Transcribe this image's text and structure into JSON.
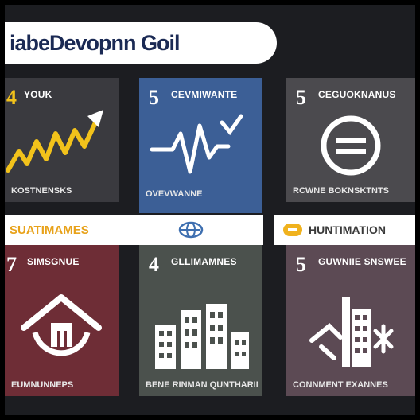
{
  "header": {
    "title": "iabeDevopnn Goil"
  },
  "tiles": [
    {
      "number": "4",
      "heading": "YOUK",
      "footer": "KOSTNENSKS",
      "color": "#3a3a3f",
      "icon": "growth-chart-icon"
    },
    {
      "number": "5",
      "heading": "CEVMIWANTE",
      "footer": "OVEVWANNE",
      "color": "#3c5f96",
      "icon": "heartbeat-icon"
    },
    {
      "number": "5",
      "heading": "CEGUOKNANUS",
      "footer": "RCWNE BOKNSKTNTS",
      "color": "#4b4a4e",
      "icon": "equals-circle-icon"
    },
    {
      "number": "7",
      "heading": "SIMSGNUE",
      "footer": "EUMNUNNEPS",
      "color": "#6e2d36",
      "icon": "house-icon"
    },
    {
      "number": "4",
      "heading": "GLLIMAMNES",
      "footer": "BENE RINMAN QUNTHARINES",
      "color": "#4b514d",
      "icon": "city-icon"
    },
    {
      "number": "5",
      "heading": "GUWNIIE SNSWEE",
      "footer": "CONNMENT EXANNES",
      "color": "#5c4a54",
      "icon": "industry-icon"
    }
  ],
  "bands": [
    {
      "text": "SUATIMAMES",
      "color": "#e8a21a"
    },
    {
      "text": "",
      "icon": "globe-icon",
      "color": "#3e6fb0"
    },
    {
      "text": "HUNTIMATION",
      "color": "#3a3a3a",
      "badge_color": "#f0b21e"
    }
  ],
  "colors": {
    "accent_yellow": "#f2c21b",
    "title_navy": "#1b2a54"
  }
}
